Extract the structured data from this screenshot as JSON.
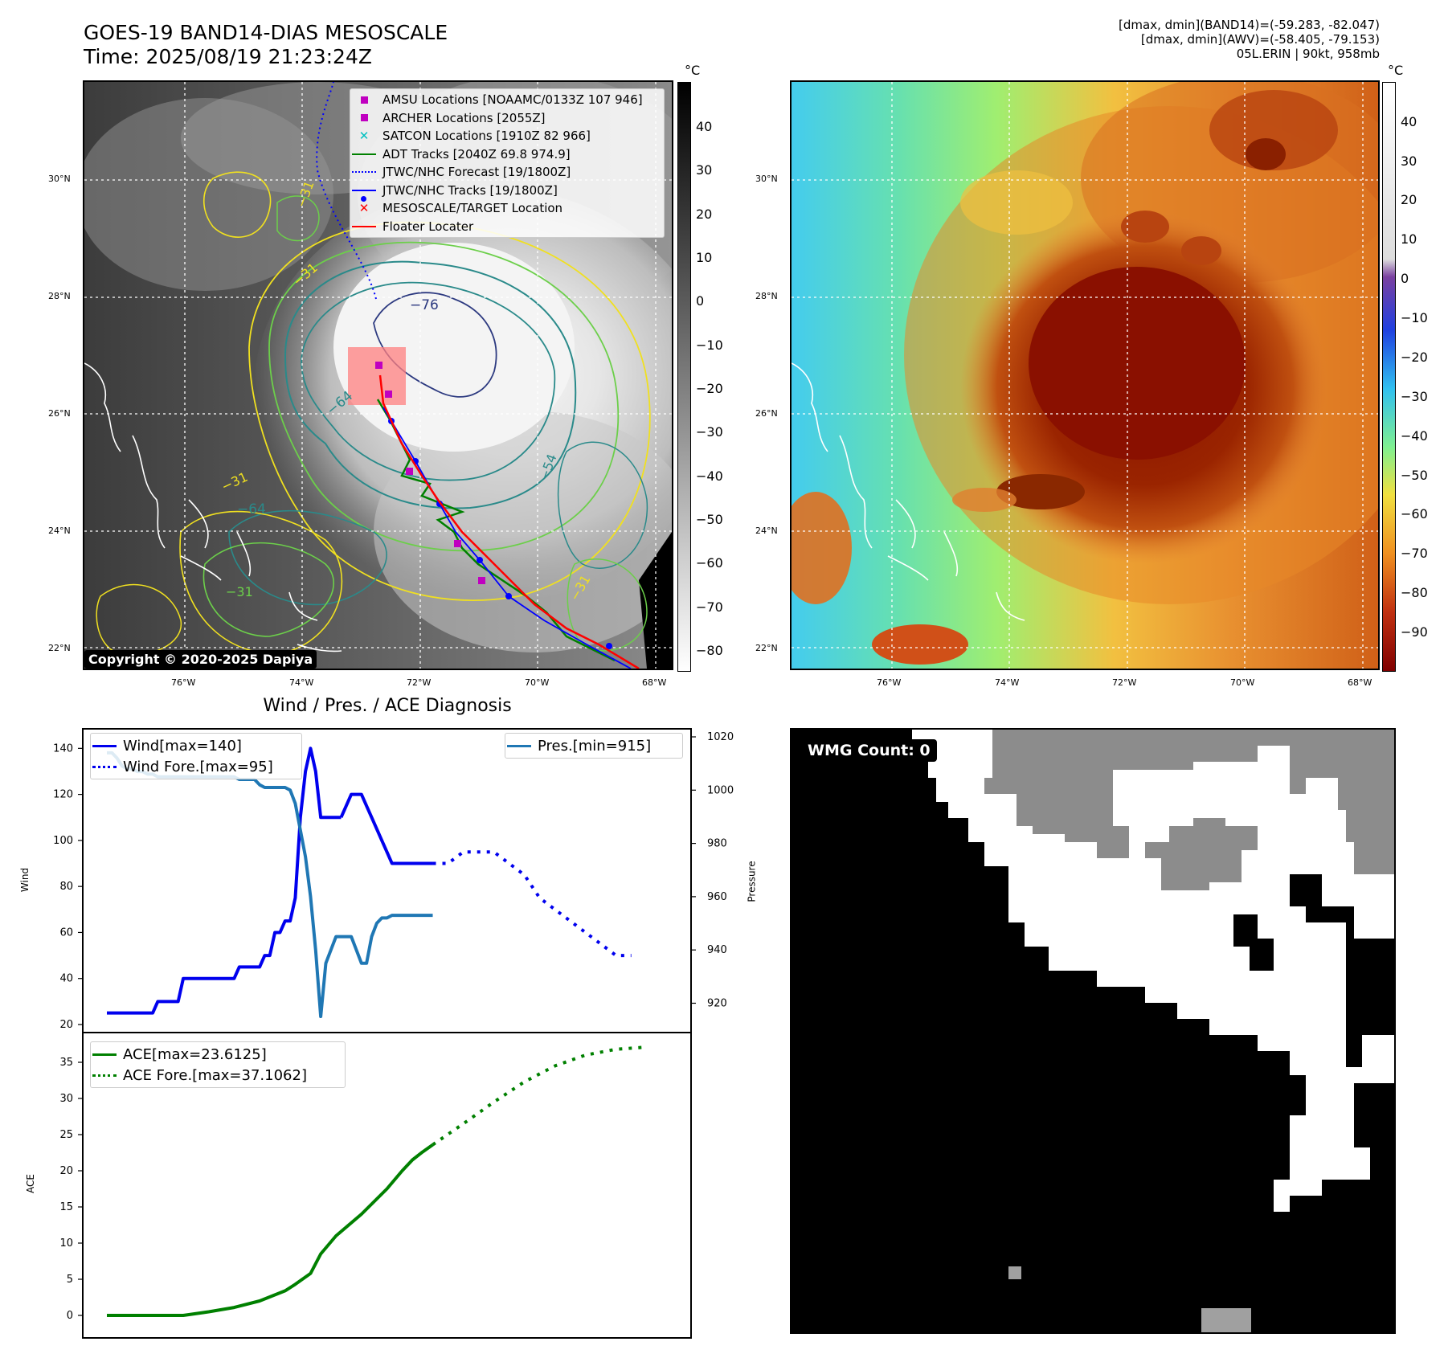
{
  "header": {
    "title_line1": "GOES-19 BAND14-DIAS MESOSCALE",
    "title_line2": "Time: 2025/08/19 21:23:24Z",
    "info_line1": "[dmax, dmin](BAND14)=(-59.283, -82.047)",
    "info_line2": "[dmax, dmin](AWV)=(-58.405, -79.153)",
    "info_line3": "05L.ERIN | 90kt, 958mb"
  },
  "map": {
    "lat_labels": [
      "30°N",
      "28°N",
      "26°N",
      "24°N",
      "22°N"
    ],
    "lon_labels": [
      "76°W",
      "74°W",
      "72°W",
      "70°W",
      "68°W"
    ],
    "copyright": "Copyright © 2020-2025 Dapiya",
    "contour_labels": [
      "−76",
      "−64",
      "−64",
      "−31",
      "−31",
      "−31",
      "−31",
      "−31",
      "−54"
    ],
    "legend": [
      {
        "label": "AMSU Locations [NOAAMC/0133Z 107 946]",
        "symbol": "square",
        "color": "#c000c0"
      },
      {
        "label": "ARCHER Locations [2055Z]",
        "symbol": "square",
        "color": "#c000c0"
      },
      {
        "label": "SATCON Locations [1910Z 82 966]",
        "symbol": "x",
        "color": "#00c0c0"
      },
      {
        "label": "ADT Tracks [2040Z 69.8 974.9]",
        "symbol": "line",
        "color": "#008000"
      },
      {
        "label": "JTWC/NHC Forecast [19/1800Z]",
        "symbol": "dotted",
        "color": "#0000ff"
      },
      {
        "label": "JTWC/NHC Tracks [19/1800Z]",
        "symbol": "line-dot",
        "color": "#0000ff"
      },
      {
        "label": "MESOSCALE/TARGET Location",
        "symbol": "x",
        "color": "#ff0000"
      },
      {
        "label": "Floater Locater",
        "symbol": "line",
        "color": "#ff0000"
      }
    ]
  },
  "colorbar_gray": {
    "unit": "°C",
    "ticks": [
      "40",
      "30",
      "20",
      "10",
      "0",
      "−10",
      "−20",
      "−30",
      "−40",
      "−50",
      "−60",
      "−70",
      "−80"
    ]
  },
  "colorbar_color": {
    "unit": "°C",
    "ticks": [
      "40",
      "30",
      "20",
      "10",
      "0",
      "−10",
      "−20",
      "−30",
      "−40",
      "−50",
      "−60",
      "−70",
      "−80",
      "−90"
    ]
  },
  "wmg": {
    "label": "WMG Count: 0"
  },
  "chart_data": [
    {
      "type": "line",
      "title": "Wind / Pres. / ACE Diagnosis",
      "xlabel": "",
      "ylabel": "Wind",
      "y2label": "Pressure",
      "ylim": [
        20,
        145
      ],
      "y2lim": [
        912,
        1020
      ],
      "yticks": [
        "140",
        "120",
        "100",
        "80",
        "60",
        "40",
        "20"
      ],
      "y2ticks": [
        "1020",
        "1000",
        "980",
        "960",
        "940",
        "920"
      ],
      "legend_left": [
        "Wind[max=140]",
        "Wind Fore.[max=95]"
      ],
      "legend_right": [
        "Pres.[min=915]"
      ],
      "series": [
        {
          "name": "Wind",
          "color": "#0000ee",
          "style": "solid",
          "axis": "left",
          "x": [
            0,
            1,
            2,
            3,
            4,
            5,
            6,
            7,
            8,
            9,
            10,
            11,
            12,
            13,
            14,
            15,
            16,
            17,
            18,
            19,
            20,
            21,
            22,
            23,
            24,
            25,
            26,
            27,
            28,
            29,
            30,
            31,
            32,
            33,
            34,
            35,
            36,
            37,
            38,
            39,
            40,
            41,
            42,
            43,
            44,
            45,
            46
          ],
          "y": [
            25,
            25,
            25,
            25,
            25,
            25,
            25,
            25,
            25,
            25,
            30,
            30,
            30,
            30,
            30,
            40,
            40,
            40,
            40,
            40,
            40,
            40,
            40,
            40,
            40,
            40,
            45,
            45,
            45,
            45,
            45,
            50,
            50,
            60,
            60,
            65,
            65,
            75,
            110,
            130,
            140,
            130,
            110,
            110,
            110,
            110,
            110
          ]
        },
        {
          "name": "Wind (cont.)",
          "color": "#0000ee",
          "style": "solid",
          "axis": "left",
          "x": [
            46,
            47,
            48,
            49,
            50,
            51,
            52,
            53,
            54,
            55,
            56,
            57,
            58,
            59,
            60,
            61,
            62,
            63,
            64
          ],
          "y": [
            110,
            115,
            120,
            120,
            120,
            115,
            110,
            105,
            100,
            95,
            90,
            90,
            90,
            90,
            90,
            90,
            90,
            90,
            90
          ]
        },
        {
          "name": "Wind Fore.",
          "color": "#0000ee",
          "style": "dotted",
          "axis": "left",
          "x": [
            64,
            67,
            70,
            73,
            76,
            79,
            82,
            85,
            88,
            91,
            94,
            97,
            100,
            103
          ],
          "y": [
            90,
            90,
            95,
            95,
            95,
            90,
            85,
            75,
            70,
            65,
            60,
            55,
            50,
            50
          ]
        },
        {
          "name": "Pres.",
          "color": "#1f77b4",
          "style": "solid",
          "axis": "right",
          "x": [
            0,
            1,
            2,
            3,
            4,
            5,
            6,
            7,
            8,
            9,
            10,
            11,
            12,
            13,
            14,
            15,
            16,
            17,
            18,
            19,
            20,
            21,
            22,
            23,
            24,
            25,
            26,
            27,
            28,
            29,
            30,
            31,
            32,
            33,
            34,
            35,
            36,
            37,
            38,
            39,
            40,
            41,
            42,
            43,
            44,
            45,
            46,
            47,
            48,
            49,
            50,
            51,
            52,
            53,
            54,
            55,
            56,
            57,
            58,
            59,
            60,
            61,
            62,
            63,
            64
          ],
          "y": [
            1014,
            1014,
            1012,
            1009,
            1008,
            1008,
            1007,
            1007,
            1006,
            1006,
            1005,
            1005,
            1005,
            1005,
            1005,
            1005,
            1005,
            1005,
            1005,
            1005,
            1005,
            1005,
            1005,
            1005,
            1005,
            1005,
            1004,
            1004,
            1004,
            1004,
            1002,
            1001,
            1001,
            1001,
            1001,
            1001,
            1000,
            995,
            985,
            975,
            960,
            940,
            915,
            935,
            940,
            945,
            945,
            945,
            945,
            940,
            935,
            935,
            945,
            950,
            952,
            952,
            953,
            953,
            953,
            953,
            953,
            953,
            953,
            953,
            953
          ]
        }
      ]
    },
    {
      "type": "line",
      "title": "",
      "xlabel": "",
      "ylabel": "ACE",
      "ylim": [
        -2,
        38
      ],
      "yticks": [
        "35",
        "30",
        "25",
        "20",
        "15",
        "10",
        "5",
        "0"
      ],
      "legend": [
        "ACE[max=23.6125]",
        "ACE Fore.[max=37.1062]"
      ],
      "series": [
        {
          "name": "ACE",
          "color": "#008000",
          "style": "solid",
          "x": [
            0,
            5,
            10,
            15,
            20,
            25,
            30,
            35,
            37,
            40,
            42,
            45,
            50,
            55,
            58,
            60,
            62,
            64
          ],
          "y": [
            0,
            0,
            0,
            0,
            0.5,
            1.1,
            2.0,
            3.4,
            4.3,
            5.8,
            8.5,
            11,
            14,
            17.5,
            20,
            21.5,
            22.6,
            23.6
          ]
        },
        {
          "name": "ACE Fore.",
          "color": "#008000",
          "style": "dotted",
          "x": [
            64,
            70,
            76,
            82,
            88,
            94,
            100,
            106
          ],
          "y": [
            23.6,
            26.5,
            29.5,
            32.3,
            34.5,
            36.0,
            36.8,
            37.1
          ]
        }
      ]
    }
  ]
}
